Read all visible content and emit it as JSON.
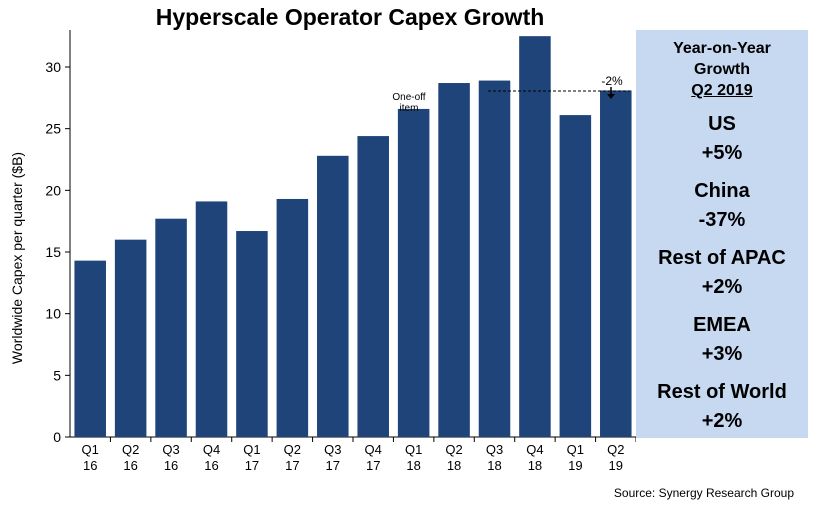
{
  "title": "Hyperscale Operator Capex Growth",
  "source": "Source:  Synergy Research  Group",
  "annotations": {
    "one_off_line1": "One-off",
    "one_off_line2": "item",
    "change": "-2%"
  },
  "panel": {
    "heading_line1": "Year-on-Year",
    "heading_line2": "Growth",
    "heading_line3": "Q2 2019",
    "regions": [
      {
        "name": "US",
        "value": "+5%"
      },
      {
        "name": "China",
        "value": "-37%"
      },
      {
        "name": "Rest of APAC",
        "value": "+2%"
      },
      {
        "name": "EMEA",
        "value": "+3%"
      },
      {
        "name": "Rest of World",
        "value": "+2%"
      }
    ]
  },
  "colors": {
    "bar": "#1f4479",
    "panel": "#c6d9f1",
    "gridline": "#d9d9d9"
  },
  "chart_data": {
    "type": "bar",
    "title": "Hyperscale Operator Capex Growth",
    "xlabel": "",
    "ylabel": "Worldwide  Capex  per quarter  ($B)",
    "categories": [
      [
        "Q1",
        "16"
      ],
      [
        "Q2",
        "16"
      ],
      [
        "Q3",
        "16"
      ],
      [
        "Q4",
        "16"
      ],
      [
        "Q1",
        "17"
      ],
      [
        "Q2",
        "17"
      ],
      [
        "Q3",
        "17"
      ],
      [
        "Q4",
        "17"
      ],
      [
        "Q1",
        "18"
      ],
      [
        "Q2",
        "18"
      ],
      [
        "Q3",
        "18"
      ],
      [
        "Q4",
        "18"
      ],
      [
        "Q1",
        "19"
      ],
      [
        "Q2",
        "19"
      ]
    ],
    "values": [
      14.3,
      16.0,
      17.7,
      19.1,
      16.7,
      19.3,
      22.8,
      24.4,
      26.6,
      28.7,
      28.9,
      32.5,
      26.1,
      28.1
    ],
    "ylim": [
      0,
      33
    ],
    "yticks": [
      0,
      5,
      10,
      15,
      20,
      25,
      30
    ],
    "grid": false,
    "legend": "none"
  }
}
